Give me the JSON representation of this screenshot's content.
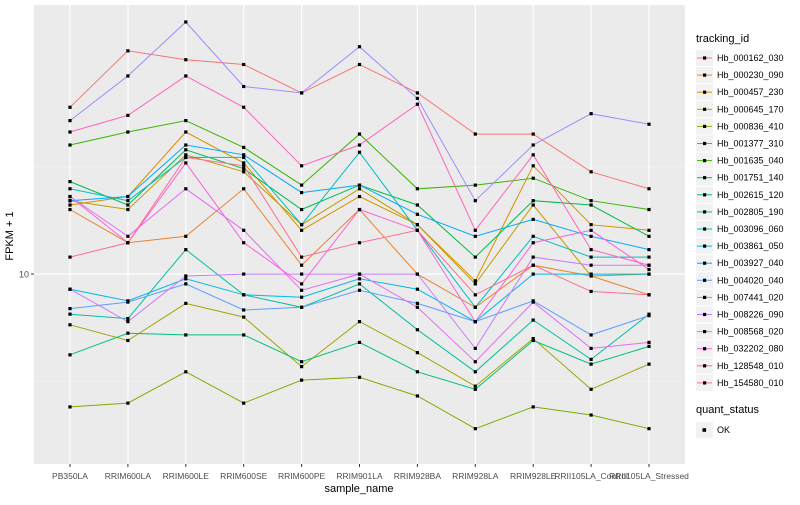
{
  "chart_data": {
    "type": "line",
    "title": "",
    "xlabel": "sample_name",
    "ylabel": "FPKM + 1",
    "y_scale": "log10",
    "ylim": [
      1.3,
      180
    ],
    "yticks": [
      10
    ],
    "ytick_labels": [
      "10"
    ],
    "categories": [
      "PB350LA",
      "RRIM600LA",
      "RRIM600LE",
      "RRIM600SE",
      "RRIM600PE",
      "RRIM901LA",
      "RRIM928BA",
      "RRIM928LA",
      "RRIM928LE",
      "RRII105LA_Control",
      "RRII105LA_Stressed"
    ],
    "x_tick_labels": [
      "PB350LA",
      "RRIM600LA",
      "RRIM600LE",
      "RRIM600SE",
      "RRIM600PE",
      "RRIM901LA",
      "RRIM928BA",
      "RRIM928LA",
      "RRIM928LE",
      "RRII105LA_Control",
      "RRII105LA_Stressed"
    ],
    "legend": {
      "title": "tracking_id",
      "position": "right",
      "status_title": "quant_status",
      "status_items": [
        {
          "label": "OK",
          "color": "#000000"
        }
      ]
    },
    "grid": true,
    "series": [
      {
        "name": "Hb_000162_030",
        "color": "#F8766D",
        "values": [
          60,
          110,
          100,
          95,
          70,
          95,
          70,
          45,
          45,
          30,
          25
        ]
      },
      {
        "name": "Hb_000230_090",
        "color": "#EA8331",
        "values": [
          20,
          14,
          15,
          25,
          11,
          20,
          10,
          7,
          11,
          9.8,
          8
        ]
      },
      {
        "name": "Hb_000457_230",
        "color": "#D89000",
        "values": [
          21,
          23,
          46,
          33,
          16,
          23,
          17,
          9.3,
          32,
          17,
          16
        ]
      },
      {
        "name": "Hb_000645_170",
        "color": "#C09B00",
        "values": [
          22,
          20,
          36,
          30,
          17,
          25,
          17,
          9,
          21,
          9.8,
          10
        ]
      },
      {
        "name": "Hb_000836_410",
        "color": "#A3A500",
        "values": [
          5.8,
          4.9,
          7.3,
          6.3,
          3.7,
          6,
          4.3,
          3,
          5,
          2.9,
          3.8
        ]
      },
      {
        "name": "Hb_001377_310",
        "color": "#7CAE00",
        "values": [
          2.4,
          2.5,
          3.5,
          2.5,
          3.2,
          3.3,
          2.7,
          1.9,
          2.4,
          2.2,
          1.9
        ]
      },
      {
        "name": "Hb_001635_040",
        "color": "#39B600",
        "values": [
          40,
          46,
          52,
          39,
          26,
          45,
          25,
          26,
          28,
          22,
          20
        ]
      },
      {
        "name": "Hb_001751_140",
        "color": "#00BB4E",
        "values": [
          27,
          21,
          38,
          31,
          20,
          26,
          21,
          12,
          22,
          21,
          15
        ]
      },
      {
        "name": "Hb_002615_120",
        "color": "#00BF7D",
        "values": [
          4.2,
          5.3,
          5.2,
          5.2,
          3.9,
          4.8,
          3.5,
          2.9,
          4.9,
          3.8,
          4.6
        ]
      },
      {
        "name": "Hb_002805_190",
        "color": "#00C1A3",
        "values": [
          6.5,
          6.2,
          13,
          8,
          7,
          9,
          5.5,
          3.5,
          6.1,
          4,
          6.5
        ]
      },
      {
        "name": "Hb_003096_060",
        "color": "#00BFC4",
        "values": [
          25,
          22,
          35,
          35,
          17,
          37,
          16,
          7,
          15,
          12,
          12
        ]
      },
      {
        "name": "Hb_003861_050",
        "color": "#00B8E7",
        "values": [
          8.5,
          7.5,
          9.5,
          8,
          7.8,
          9.5,
          8.5,
          6,
          10,
          10,
          10
        ]
      },
      {
        "name": "Hb_003927_040",
        "color": "#00A9FF",
        "values": [
          22,
          23,
          40,
          36,
          24,
          26,
          19,
          15,
          18,
          15,
          13
        ]
      },
      {
        "name": "Hb_004020_040",
        "color": "#619CFF",
        "values": [
          6.9,
          7.4,
          9,
          6.8,
          7,
          8.4,
          7.3,
          6,
          7.5,
          5.2,
          6.4
        ]
      },
      {
        "name": "Hb_007441_020",
        "color": "#9F8CFF",
        "values": [
          52,
          84,
          150,
          75,
          70,
          115,
          66,
          22,
          40,
          56,
          50
        ]
      },
      {
        "name": "Hb_008226_090",
        "color": "#C77CFF",
        "values": [
          8.5,
          6,
          9.8,
          10,
          10,
          10,
          10,
          4.5,
          12,
          11,
          11
        ]
      },
      {
        "name": "Hb_008568_020",
        "color": "#E76BF3",
        "values": [
          23,
          15,
          25,
          16,
          8.4,
          10,
          7,
          3.9,
          7.4,
          4.5,
          4.8
        ]
      },
      {
        "name": "Hb_032202_080",
        "color": "#FA62DB",
        "values": [
          23,
          14,
          33,
          14,
          9,
          20,
          16,
          6,
          14,
          16,
          10.5
        ]
      },
      {
        "name": "Hb_128548_010",
        "color": "#FF62BC",
        "values": [
          46,
          55,
          84,
          60,
          32,
          40,
          62,
          16,
          36,
          13,
          11
        ]
      },
      {
        "name": "Hb_154580_010",
        "color": "#FF6C90",
        "values": [
          12,
          14,
          35,
          32,
          12,
          14,
          16,
          8,
          11,
          8.3,
          8
        ]
      }
    ]
  }
}
